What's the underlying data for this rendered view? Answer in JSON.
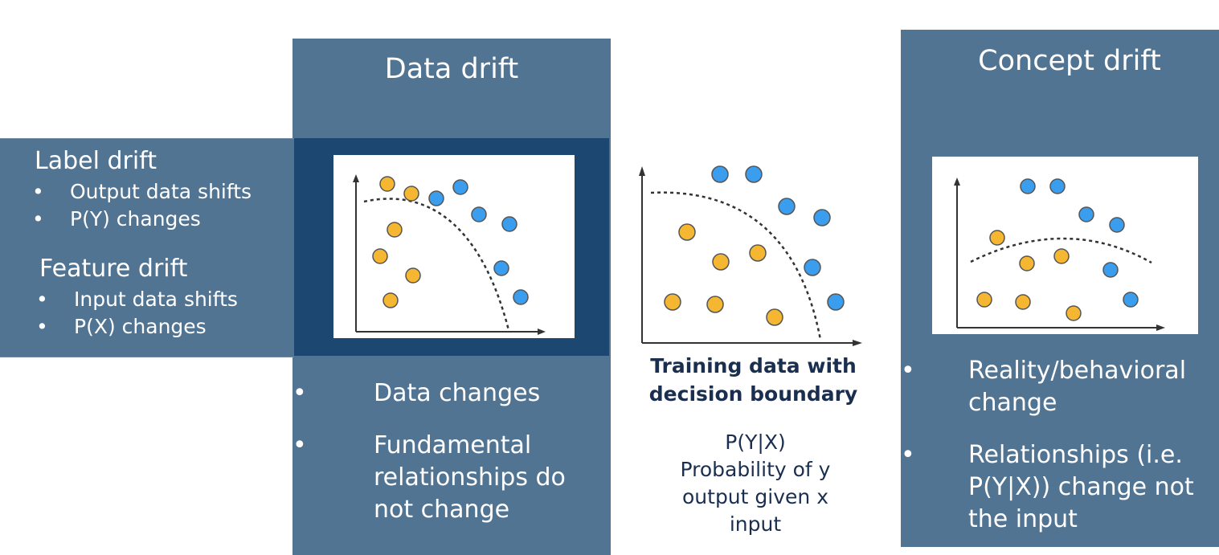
{
  "left_panel": {
    "label_drift": {
      "heading": "Label drift",
      "items": [
        "Output data shifts",
        "P(Y) changes"
      ]
    },
    "feature_drift": {
      "heading": "Feature drift",
      "items": [
        "Input data shifts",
        "P(X) changes"
      ]
    }
  },
  "data_drift": {
    "title": "Data drift",
    "items": [
      "Data changes",
      "Fundamental relationships do not change"
    ],
    "plot": {
      "orange": [
        [
          0.25,
          0.22
        ],
        [
          0.3,
          0.28
        ],
        [
          0.26,
          0.47
        ],
        [
          0.22,
          0.62
        ],
        [
          0.33,
          0.75
        ],
        [
          0.23,
          0.87
        ]
      ],
      "blue": [
        [
          0.43,
          0.3
        ],
        [
          0.52,
          0.24
        ],
        [
          0.64,
          0.42
        ],
        [
          0.74,
          0.49
        ],
        [
          0.71,
          0.72
        ],
        [
          0.78,
          0.87
        ]
      ],
      "colors": {
        "orange": "#f5b731",
        "blue": "#3b9ded"
      }
    }
  },
  "training": {
    "caption_bold": "Training data with decision boundary",
    "caption": [
      "P(Y|X)",
      "Probability of y",
      "output given x",
      "input"
    ]
  },
  "concept_drift": {
    "title": "Concept drift",
    "items": [
      "Reality/behavioral change",
      "Relationships (i.e. P(Y|X)) change not the input"
    ]
  },
  "bullet": "•"
}
